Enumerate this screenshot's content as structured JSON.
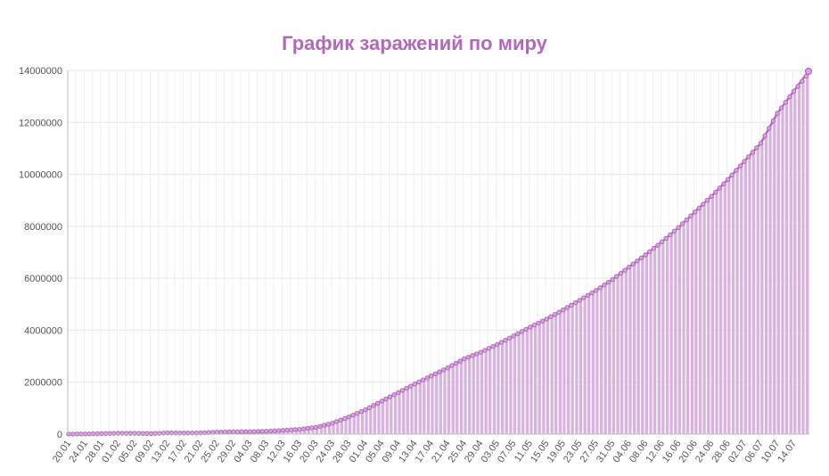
{
  "chart_data": {
    "type": "bar",
    "title": "График заражений по миру",
    "xlabel": "",
    "ylabel": "",
    "ylim": [
      0,
      14000000
    ],
    "yticks": [
      0,
      2000000,
      4000000,
      6000000,
      8000000,
      10000000,
      12000000,
      14000000
    ],
    "x_tick_labels": [
      "20.01",
      "24.01",
      "28.01",
      "01.02",
      "05.02",
      "09.02",
      "13.02",
      "17.02",
      "21.02",
      "25.02",
      "29.02",
      "04.03",
      "08.03",
      "12.03",
      "16.03",
      "20.03",
      "24.03",
      "28.03",
      "01.04",
      "05.04",
      "09.04",
      "13.04",
      "17.04",
      "21.04",
      "25.04",
      "29.04",
      "03.05",
      "07.05",
      "11.05",
      "15.05",
      "19.05",
      "23.05",
      "27.05",
      "31.05",
      "04.06",
      "08.06",
      "12.06",
      "16.06",
      "20.06",
      "24.06",
      "28.06",
      "02.07",
      "06.07",
      "10.07",
      "14.07"
    ],
    "days_per_category": 4,
    "grid": true,
    "overlay": "line with point markers over bars",
    "series": [
      {
        "values": [
          580,
          7800,
          17400,
          34800,
          30000,
          20000,
          45000,
          41000,
          44000,
          76000,
          86000,
          95000,
          110000,
          145000,
          182000,
          260000,
          420000,
          660000,
          935000,
          1270000,
          1600000,
          1930000,
          2240000,
          2550000,
          2900000,
          3150000,
          3450000,
          3780000,
          4120000,
          4430000,
          4780000,
          5150000,
          5530000,
          5950000,
          6430000,
          6900000,
          7400000,
          7950000,
          8550000,
          9150000,
          9800000,
          10500000,
          11200000,
          12350000,
          13200000
        ]
      }
    ],
    "colors": {
      "bar": "#d9b3df",
      "line": "#b06ab8",
      "title": "#b06ab8",
      "grid": "#e6e6e6",
      "axis": "#bdbdbd"
    }
  }
}
